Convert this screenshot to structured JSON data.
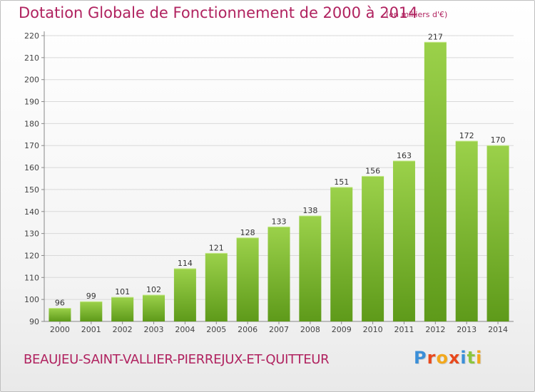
{
  "header": {
    "title": "Dotation Globale de Fonctionnement de 2000 à 2014",
    "unit": "(en milliers d'€)"
  },
  "footer": {
    "city": "BEAUJEU-SAINT-VALLIER-PIERREJUX-ET-QUITTEUR",
    "logo_letters": [
      "P",
      "r",
      "o",
      "x",
      "i",
      "t",
      "i"
    ],
    "logo_colors": [
      "#3b8fd8",
      "#e8491d",
      "#f2a81d",
      "#e8491d",
      "#3b8fd8",
      "#8dc63f",
      "#f2a81d"
    ]
  },
  "colors": {
    "text": "#b0225f",
    "bar_top": "#9bd14a",
    "bar_bottom": "#5e9a1a",
    "grid": "#d9d9d9",
    "axis": "#888888"
  },
  "chart_data": {
    "type": "bar",
    "categories": [
      "2000",
      "2001",
      "2002",
      "2003",
      "2004",
      "2005",
      "2006",
      "2007",
      "2008",
      "2009",
      "2010",
      "2011",
      "2012",
      "2013",
      "2014"
    ],
    "values": [
      96,
      99,
      101,
      102,
      114,
      121,
      128,
      133,
      138,
      151,
      156,
      163,
      217,
      172,
      170
    ],
    "ylim": [
      90,
      220
    ],
    "yticks": [
      90,
      100,
      110,
      120,
      130,
      140,
      150,
      160,
      170,
      180,
      190,
      200,
      210,
      220
    ],
    "grid": true,
    "legend": "none"
  }
}
